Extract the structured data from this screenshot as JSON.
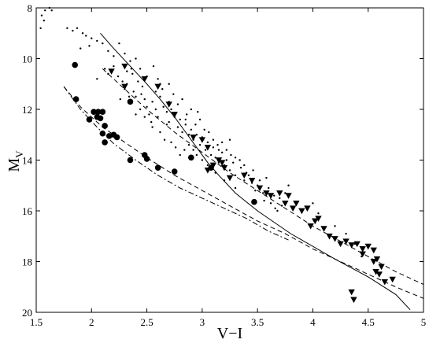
{
  "chart_data": {
    "type": "scatter",
    "title": "",
    "xlabel": "V−I",
    "ylabel_main": "M",
    "ylabel_sub": "V",
    "xlim": [
      1.5,
      5
    ],
    "ylim": [
      8,
      20
    ],
    "y_inverted": true,
    "grid": false,
    "xticks": [
      {
        "value": 1.5,
        "label": "1.5"
      },
      {
        "value": 2,
        "label": "2"
      },
      {
        "value": 2.5,
        "label": "2.5"
      },
      {
        "value": 3,
        "label": "3"
      },
      {
        "value": 3.5,
        "label": "3.5"
      },
      {
        "value": 4,
        "label": "4"
      },
      {
        "value": 4.5,
        "label": "4.5"
      },
      {
        "value": 5,
        "label": "5"
      }
    ],
    "yticks": [
      {
        "value": 8,
        "label": "8"
      },
      {
        "value": 10,
        "label": "10"
      },
      {
        "value": 12,
        "label": "12"
      },
      {
        "value": 14,
        "label": "14"
      },
      {
        "value": 16,
        "label": "16"
      },
      {
        "value": 18,
        "label": "18"
      },
      {
        "value": 20,
        "label": "20"
      }
    ],
    "series": [
      {
        "marker": "dot",
        "points": [
          [
            1.55,
            8.3
          ],
          [
            1.58,
            8.1
          ],
          [
            1.62,
            8.0
          ],
          [
            1.64,
            8.1
          ],
          [
            1.57,
            8.5
          ],
          [
            1.54,
            8.8
          ],
          [
            1.78,
            8.8
          ],
          [
            1.83,
            8.9
          ],
          [
            1.87,
            8.8
          ],
          [
            1.92,
            9.0
          ],
          [
            1.95,
            9.1
          ],
          [
            2.0,
            9.2
          ],
          [
            2.05,
            9.3
          ],
          [
            1.98,
            9.5
          ],
          [
            1.9,
            9.6
          ],
          [
            2.1,
            9.4
          ],
          [
            2.15,
            9.7
          ],
          [
            2.2,
            9.9
          ],
          [
            2.25,
            9.4
          ],
          [
            2.3,
            9.8
          ],
          [
            2.35,
            10.1
          ],
          [
            2.2,
            10.3
          ],
          [
            2.12,
            10.4
          ],
          [
            2.15,
            10.6
          ],
          [
            2.05,
            10.8
          ],
          [
            2.24,
            10.7
          ],
          [
            2.28,
            10.9
          ],
          [
            2.32,
            11.0
          ],
          [
            2.37,
            10.6
          ],
          [
            2.42,
            10.9
          ],
          [
            2.46,
            11.1
          ],
          [
            2.38,
            11.3
          ],
          [
            2.4,
            11.5
          ],
          [
            2.45,
            11.4
          ],
          [
            2.48,
            11.6
          ],
          [
            2.5,
            11.9
          ],
          [
            2.55,
            11.7
          ],
          [
            2.58,
            12.0
          ],
          [
            2.52,
            12.2
          ],
          [
            2.6,
            12.3
          ],
          [
            2.62,
            11.5
          ],
          [
            2.65,
            11.9
          ],
          [
            2.68,
            12.1
          ],
          [
            2.7,
            12.5
          ],
          [
            2.72,
            12.0
          ],
          [
            2.75,
            12.3
          ],
          [
            2.78,
            12.7
          ],
          [
            2.8,
            12.4
          ],
          [
            2.82,
            12.9
          ],
          [
            2.85,
            12.6
          ],
          [
            2.88,
            13.0
          ],
          [
            2.9,
            12.8
          ],
          [
            2.92,
            13.2
          ],
          [
            2.95,
            13.0
          ],
          [
            2.98,
            13.4
          ],
          [
            3.0,
            13.1
          ],
          [
            3.03,
            13.6
          ],
          [
            3.05,
            13.3
          ],
          [
            3.08,
            13.8
          ],
          [
            3.1,
            13.5
          ],
          [
            3.12,
            13.9
          ],
          [
            3.15,
            14.1
          ],
          [
            3.18,
            13.7
          ],
          [
            3.2,
            14.2
          ],
          [
            3.22,
            14.0
          ],
          [
            3.25,
            14.4
          ],
          [
            3.28,
            14.1
          ],
          [
            3.3,
            14.6
          ],
          [
            3.35,
            14.3
          ],
          [
            3.38,
            14.8
          ],
          [
            3.4,
            14.5
          ],
          [
            3.45,
            14.9
          ],
          [
            3.5,
            15.0
          ],
          [
            3.55,
            15.3
          ],
          [
            3.6,
            15.1
          ],
          [
            3.65,
            15.4
          ],
          [
            3.7,
            15.5
          ],
          [
            3.75,
            15.3
          ],
          [
            3.78,
            15.0
          ],
          [
            3.62,
            15.7
          ],
          [
            3.68,
            16.0
          ],
          [
            3.72,
            15.8
          ],
          [
            2.44,
            10.4
          ],
          [
            2.5,
            10.7
          ],
          [
            2.56,
            10.3
          ],
          [
            2.6,
            10.8
          ],
          [
            2.64,
            11.2
          ],
          [
            2.7,
            11.0
          ],
          [
            2.74,
            11.4
          ],
          [
            2.78,
            11.8
          ],
          [
            2.82,
            11.6
          ],
          [
            2.86,
            12.2
          ],
          [
            2.9,
            12.0
          ],
          [
            2.94,
            12.6
          ],
          [
            2.98,
            12.4
          ],
          [
            3.02,
            12.8
          ],
          [
            3.06,
            12.9
          ],
          [
            3.1,
            13.2
          ],
          [
            3.14,
            13.4
          ],
          [
            3.18,
            13.3
          ],
          [
            3.22,
            13.6
          ],
          [
            3.26,
            13.8
          ],
          [
            3.3,
            13.9
          ],
          [
            3.34,
            14.0
          ],
          [
            3.38,
            14.2
          ],
          [
            2.55,
            12.7
          ],
          [
            2.62,
            12.9
          ],
          [
            2.66,
            13.2
          ],
          [
            2.58,
            11.3
          ],
          [
            2.48,
            12.3
          ],
          [
            2.54,
            12.5
          ],
          [
            2.72,
            13.3
          ],
          [
            2.76,
            13.5
          ],
          [
            2.8,
            13.8
          ],
          [
            2.84,
            13.6
          ],
          [
            2.44,
            12.0
          ],
          [
            2.34,
            11.5
          ],
          [
            2.3,
            11.2
          ],
          [
            2.26,
            11.6
          ],
          [
            2.4,
            12.2
          ],
          [
            3.42,
            14.6
          ],
          [
            3.46,
            14.4
          ],
          [
            3.48,
            15.2
          ],
          [
            3.52,
            14.8
          ],
          [
            3.56,
            15.6
          ],
          [
            3.05,
            14.2
          ],
          [
            3.12,
            14.5
          ],
          [
            3.0,
            14.0
          ],
          [
            2.95,
            13.8
          ],
          [
            2.88,
            13.4
          ],
          [
            3.2,
            14.8
          ],
          [
            3.3,
            15.1
          ],
          [
            3.58,
            14.7
          ],
          [
            3.66,
            15.9
          ],
          [
            4.0,
            15.7
          ],
          [
            4.05,
            16.1
          ],
          [
            4.2,
            16.6
          ],
          [
            4.3,
            16.9
          ],
          [
            4.38,
            17.3
          ],
          [
            4.44,
            17.8
          ],
          [
            2.36,
            10.4
          ],
          [
            2.4,
            10.0
          ],
          [
            2.32,
            10.5
          ],
          [
            2.62,
            11.0
          ],
          [
            2.7,
            11.7
          ],
          [
            2.85,
            12.4
          ],
          [
            3.15,
            13.6
          ],
          [
            3.25,
            13.2
          ],
          [
            2.96,
            12.1
          ],
          [
            2.68,
            12.6
          ],
          [
            2.92,
            13.6
          ]
        ]
      },
      {
        "marker": "circle",
        "points": [
          [
            1.85,
            10.25
          ],
          [
            1.86,
            11.6
          ],
          [
            1.98,
            12.4
          ],
          [
            2.02,
            12.1
          ],
          [
            2.05,
            12.3
          ],
          [
            2.06,
            12.1
          ],
          [
            2.08,
            12.35
          ],
          [
            2.1,
            12.1
          ],
          [
            2.12,
            12.65
          ],
          [
            2.1,
            12.95
          ],
          [
            2.12,
            13.3
          ],
          [
            2.16,
            13.05
          ],
          [
            2.2,
            13.0
          ],
          [
            2.23,
            13.1
          ],
          [
            2.35,
            11.7
          ],
          [
            2.35,
            14.0
          ],
          [
            2.48,
            13.8
          ],
          [
            2.5,
            13.95
          ],
          [
            2.6,
            14.3
          ],
          [
            2.75,
            14.45
          ],
          [
            2.9,
            13.9
          ],
          [
            3.08,
            14.3
          ],
          [
            3.47,
            15.65
          ]
        ]
      },
      {
        "marker": "triangle-down",
        "points": [
          [
            2.3,
            10.3
          ],
          [
            2.18,
            10.5
          ],
          [
            2.3,
            11.1
          ],
          [
            2.48,
            10.8
          ],
          [
            2.6,
            11.1
          ],
          [
            2.7,
            11.8
          ],
          [
            2.75,
            12.2
          ],
          [
            2.92,
            13.1
          ],
          [
            3.0,
            13.2
          ],
          [
            3.05,
            13.5
          ],
          [
            3.1,
            14.2
          ],
          [
            3.15,
            14.0
          ],
          [
            3.2,
            14.3
          ],
          [
            3.05,
            14.4
          ],
          [
            3.25,
            14.7
          ],
          [
            3.38,
            14.6
          ],
          [
            3.45,
            14.8
          ],
          [
            3.52,
            15.1
          ],
          [
            3.58,
            15.3
          ],
          [
            3.62,
            15.4
          ],
          [
            3.7,
            15.3
          ],
          [
            3.75,
            15.7
          ],
          [
            3.82,
            15.9
          ],
          [
            3.85,
            15.7
          ],
          [
            3.9,
            16.0
          ],
          [
            3.95,
            15.9
          ],
          [
            3.98,
            16.6
          ],
          [
            4.02,
            16.4
          ],
          [
            4.05,
            16.3
          ],
          [
            4.1,
            16.7
          ],
          [
            4.15,
            17.0
          ],
          [
            4.2,
            17.1
          ],
          [
            4.25,
            17.3
          ],
          [
            4.3,
            17.2
          ],
          [
            4.35,
            17.35
          ],
          [
            4.4,
            17.3
          ],
          [
            4.45,
            17.5
          ],
          [
            4.5,
            17.4
          ],
          [
            4.55,
            17.55
          ],
          [
            4.45,
            17.7
          ],
          [
            4.55,
            18.0
          ],
          [
            4.57,
            18.4
          ],
          [
            4.6,
            18.5
          ],
          [
            4.65,
            18.8
          ],
          [
            4.72,
            18.7
          ],
          [
            4.62,
            18.2
          ],
          [
            4.58,
            17.9
          ],
          [
            4.35,
            19.2
          ],
          [
            4.37,
            19.5
          ],
          [
            3.78,
            15.4
          ],
          [
            3.18,
            14.1
          ]
        ]
      }
    ],
    "lines": [
      {
        "style": "solid",
        "points": [
          [
            2.08,
            9.0
          ],
          [
            2.2,
            9.6
          ],
          [
            2.35,
            10.3
          ],
          [
            2.5,
            11.0
          ],
          [
            2.62,
            11.6
          ],
          [
            2.75,
            12.3
          ],
          [
            2.85,
            12.9
          ],
          [
            2.95,
            13.5
          ],
          [
            3.05,
            14.1
          ],
          [
            3.15,
            14.6
          ],
          [
            3.3,
            15.3
          ],
          [
            3.5,
            16.0
          ],
          [
            3.8,
            16.9
          ],
          [
            4.2,
            17.9
          ],
          [
            4.5,
            18.6
          ],
          [
            4.75,
            19.3
          ],
          [
            4.88,
            19.9
          ]
        ]
      },
      {
        "style": "dashed",
        "points": [
          [
            2.1,
            10.4
          ],
          [
            2.25,
            11.0
          ],
          [
            2.5,
            12.0
          ],
          [
            2.75,
            12.9
          ],
          [
            3.0,
            13.7
          ],
          [
            3.25,
            14.5
          ],
          [
            3.5,
            15.2
          ],
          [
            3.75,
            15.9
          ],
          [
            4.0,
            16.6
          ],
          [
            4.25,
            17.2
          ],
          [
            4.5,
            17.8
          ],
          [
            4.75,
            18.4
          ],
          [
            5.0,
            18.9
          ]
        ]
      },
      {
        "style": "dashed",
        "points": [
          [
            1.75,
            11.1
          ],
          [
            1.9,
            11.9
          ],
          [
            2.1,
            12.7
          ],
          [
            2.3,
            13.3
          ],
          [
            2.5,
            13.9
          ],
          [
            2.75,
            14.6
          ],
          [
            3.0,
            15.2
          ],
          [
            3.25,
            15.8
          ],
          [
            3.5,
            16.4
          ],
          [
            3.75,
            16.9
          ],
          [
            4.0,
            17.5
          ],
          [
            4.25,
            18.0
          ],
          [
            4.5,
            18.5
          ],
          [
            4.75,
            19.0
          ],
          [
            5.0,
            19.45
          ]
        ]
      },
      {
        "style": "dashdot",
        "points": [
          [
            1.75,
            11.1
          ],
          [
            1.9,
            12.0
          ],
          [
            2.05,
            12.7
          ],
          [
            2.2,
            13.35
          ],
          [
            2.4,
            14.0
          ],
          [
            2.6,
            14.6
          ],
          [
            2.8,
            15.1
          ],
          [
            3.0,
            15.5
          ],
          [
            3.2,
            15.9
          ],
          [
            3.4,
            16.3
          ],
          [
            3.6,
            16.8
          ],
          [
            3.78,
            17.15
          ]
        ]
      }
    ]
  }
}
